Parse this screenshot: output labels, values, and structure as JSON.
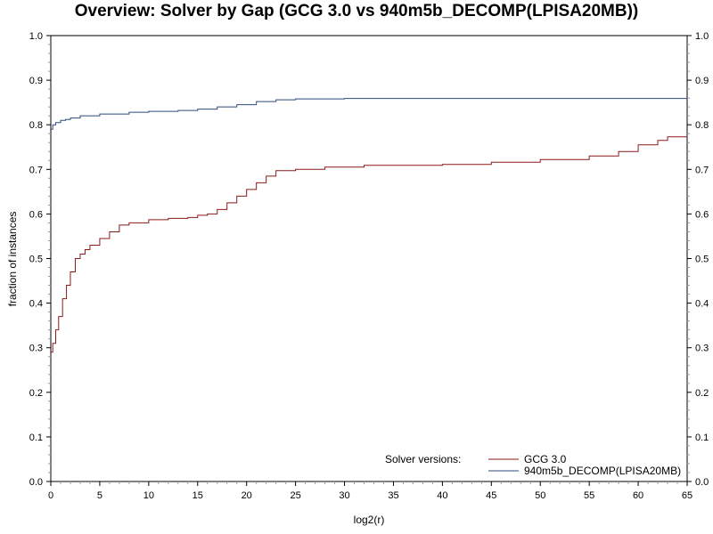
{
  "chart_data": {
    "type": "line",
    "title": "Overview: Solver by Gap (GCG 3.0 vs 940m5b_DECOMP(LPISA20MB))",
    "xlabel": "log2(r)",
    "ylabel": "fraction of instances",
    "xlim": [
      0,
      65
    ],
    "ylim": [
      0,
      1.0
    ],
    "x_ticks": [
      "0",
      "5",
      "10",
      "15",
      "20",
      "25",
      "30",
      "35",
      "40",
      "45",
      "50",
      "55",
      "60",
      "65"
    ],
    "y_ticks": [
      "0.0",
      "0.1",
      "0.2",
      "0.3",
      "0.4",
      "0.5",
      "0.6",
      "0.7",
      "0.8",
      "0.9",
      "1.0"
    ],
    "grid": false,
    "step": true,
    "legend_title": "Solver versions:",
    "legend_position": "bottom-right",
    "series": [
      {
        "name": "GCG 3.0",
        "color": "#8b1a1a",
        "x": [
          0,
          0.2,
          0.5,
          0.8,
          1.2,
          1.6,
          2.0,
          2.5,
          3.0,
          3.5,
          4.0,
          5.0,
          6.0,
          7.0,
          8.0,
          10.0,
          12.0,
          14.0,
          15.0,
          16.0,
          17.0,
          18.0,
          19.0,
          20.0,
          21.0,
          22.0,
          23.0,
          25.0,
          28.0,
          32.0,
          40.0,
          45.0,
          50.0,
          55.0,
          58.0,
          60.0,
          62.0,
          63.0,
          65.0
        ],
        "values": [
          0.29,
          0.31,
          0.34,
          0.37,
          0.41,
          0.44,
          0.47,
          0.5,
          0.51,
          0.52,
          0.53,
          0.545,
          0.56,
          0.575,
          0.58,
          0.587,
          0.59,
          0.592,
          0.597,
          0.6,
          0.61,
          0.625,
          0.64,
          0.655,
          0.67,
          0.685,
          0.697,
          0.7,
          0.705,
          0.709,
          0.711,
          0.716,
          0.722,
          0.73,
          0.74,
          0.755,
          0.765,
          0.773,
          0.775
        ]
      },
      {
        "name": "940m5b_DECOMP(LPISA20MB)",
        "color": "#2e4a7d",
        "x": [
          0,
          0.2,
          0.5,
          1.0,
          1.5,
          2.0,
          3.0,
          5.0,
          8.0,
          10.0,
          13.0,
          15.0,
          17.0,
          19.0,
          21.0,
          23.0,
          25.0,
          30.0,
          65.0
        ],
        "values": [
          0.79,
          0.8,
          0.805,
          0.81,
          0.812,
          0.815,
          0.82,
          0.824,
          0.828,
          0.83,
          0.832,
          0.835,
          0.84,
          0.845,
          0.852,
          0.856,
          0.858,
          0.859,
          0.859
        ]
      }
    ]
  }
}
